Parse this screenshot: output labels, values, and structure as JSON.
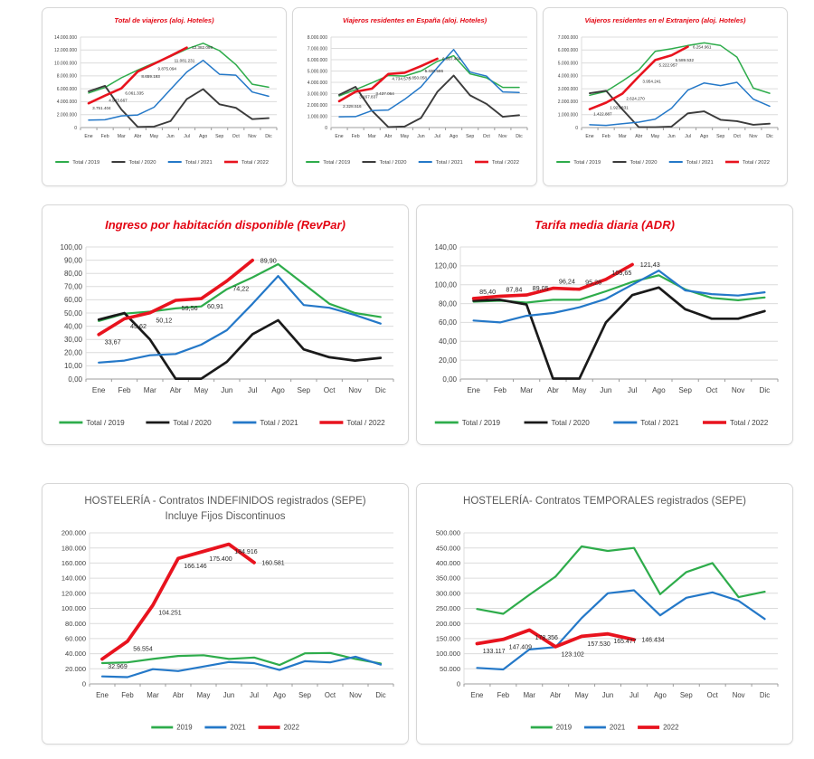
{
  "months": [
    "Ene",
    "Feb",
    "Mar",
    "Abr",
    "May",
    "Jun",
    "Jul",
    "Ago",
    "Sep",
    "Oct",
    "Nov",
    "Dic"
  ],
  "chart_data": [
    {
      "id": "total-viajeros",
      "type": "line",
      "size": "sm",
      "title": "Total de viajeros (aloj. Hoteles)",
      "title_color": "#e30613",
      "categories": [
        "Ene",
        "Feb",
        "Mar",
        "Abr",
        "May",
        "Jun",
        "Jul",
        "Ago",
        "Sep",
        "Oct",
        "Nov",
        "Dic"
      ],
      "ylim": [
        0,
        14000000
      ],
      "grid": true,
      "legend_position": "bottom",
      "label_pos": "below",
      "yticks": [
        [
          0,
          "0"
        ],
        [
          2000000,
          "2.000.000"
        ],
        [
          4000000,
          "4.000.000"
        ],
        [
          6000000,
          "6.000.000"
        ],
        [
          8000000,
          "8.000.000"
        ],
        [
          10000000,
          "10.000.000"
        ],
        [
          12000000,
          "12.000.000"
        ],
        [
          14000000,
          "14.000.000"
        ]
      ],
      "series": [
        {
          "name": "Total / 2019",
          "color": "#2eac4b",
          "values": [
            5350000,
            6200000,
            7700000,
            8900000,
            10000000,
            11000000,
            12150000,
            13050000,
            11900000,
            9750000,
            6700000,
            6250000
          ]
        },
        {
          "name": "Total / 2020",
          "color": "#3b3b3b",
          "values": [
            5600000,
            6450000,
            2800000,
            100000,
            150000,
            1000000,
            4400000,
            5950000,
            3600000,
            3050000,
            1300000,
            1450000
          ]
        },
        {
          "name": "Total / 2021",
          "color": "#2478c8",
          "values": [
            1150000,
            1200000,
            1800000,
            1950000,
            3150000,
            5900000,
            8600000,
            10400000,
            8250000,
            8100000,
            5500000,
            4850000
          ]
        },
        {
          "name": "Total / 2022",
          "color": "#e8131e",
          "values": [
            3751404,
            4943667,
            6061335,
            8659193,
            9875094,
            11081231,
            12382098
          ],
          "labels": [
            "3.751.404",
            "4.943.667",
            "6.061.335",
            "8.659.193",
            "9.875.094",
            "11.081.231",
            "12.382.098"
          ]
        }
      ]
    },
    {
      "id": "viajeros-espana",
      "type": "line",
      "size": "sm",
      "title": "Viajeros residentes en España (aloj. Hoteles)",
      "title_color": "#e30613",
      "categories": [
        "Ene",
        "Feb",
        "Mar",
        "Abr",
        "May",
        "Jun",
        "Jul",
        "Ago",
        "Sep",
        "Oct",
        "Nov",
        "Dic"
      ],
      "ylim": [
        0,
        8000000
      ],
      "grid": true,
      "legend_position": "bottom",
      "label_pos": "below",
      "yticks": [
        [
          0,
          "0"
        ],
        [
          1000000,
          "1.000.000"
        ],
        [
          2000000,
          "2.000.000"
        ],
        [
          3000000,
          "3.000.000"
        ],
        [
          4000000,
          "4.000.000"
        ],
        [
          5000000,
          "5.000.000"
        ],
        [
          6000000,
          "6.000.000"
        ],
        [
          7000000,
          "7.000.000"
        ],
        [
          8000000,
          "8.000.000"
        ]
      ],
      "series": [
        {
          "name": "Total / 2019",
          "color": "#2eac4b",
          "values": [
            2800000,
            3350000,
            3950000,
            4600000,
            4550000,
            5000000,
            5850000,
            6350000,
            4750000,
            4400000,
            3550000,
            3550000
          ]
        },
        {
          "name": "Total / 2020",
          "color": "#3b3b3b",
          "values": [
            2900000,
            3600000,
            1500000,
            50000,
            100000,
            850000,
            3150000,
            4600000,
            2850000,
            2100000,
            950000,
            1100000
          ]
        },
        {
          "name": "Total / 2021",
          "color": "#2478c8",
          "values": [
            950000,
            970000,
            1500000,
            1550000,
            2500000,
            3600000,
            5300000,
            6900000,
            4900000,
            4550000,
            3150000,
            3100000
          ]
        },
        {
          "name": "Total / 2022",
          "color": "#e8131e",
          "values": [
            2328516,
            3167837,
            3437064,
            4734573,
            4850058,
            5430586,
            6087404
          ],
          "labels": [
            "2.328.516",
            "3.167.837",
            "3.437.064",
            "4.734.573",
            "4.850.058",
            "5.430.586",
            "6.087.404"
          ]
        }
      ]
    },
    {
      "id": "viajeros-extranjero",
      "type": "line",
      "size": "sm",
      "title": "Viajeros residentes en el Extranjero (aloj. Hoteles)",
      "title_color": "#e30613",
      "categories": [
        "Ene",
        "Feb",
        "Mar",
        "Abr",
        "May",
        "Jun",
        "Jul",
        "Ago",
        "Sep",
        "Oct",
        "Nov",
        "Dic"
      ],
      "ylim": [
        0,
        7000000
      ],
      "grid": true,
      "legend_position": "bottom",
      "label_pos": "below",
      "yticks": [
        [
          0,
          "0"
        ],
        [
          1000000,
          "1.000.000"
        ],
        [
          2000000,
          "2.000.000"
        ],
        [
          3000000,
          "3.000.000"
        ],
        [
          4000000,
          "4.000.000"
        ],
        [
          5000000,
          "5.000.000"
        ],
        [
          6000000,
          "6.000.000"
        ],
        [
          7000000,
          "7.000.000"
        ]
      ],
      "series": [
        {
          "name": "Total / 2019",
          "color": "#2eac4b",
          "values": [
            2500000,
            2800000,
            3600000,
            4450000,
            5900000,
            6100000,
            6350000,
            6550000,
            6350000,
            5450000,
            3050000,
            2650000
          ]
        },
        {
          "name": "Total / 2020",
          "color": "#3b3b3b",
          "values": [
            2650000,
            2850000,
            1400000,
            30000,
            30000,
            80000,
            1100000,
            1250000,
            600000,
            500000,
            220000,
            300000
          ]
        },
        {
          "name": "Total / 2021",
          "color": "#2478c8",
          "values": [
            220000,
            170000,
            300000,
            420000,
            650000,
            1500000,
            2900000,
            3450000,
            3250000,
            3500000,
            2200000,
            1650000
          ]
        },
        {
          "name": "Total / 2022",
          "color": "#e8131e",
          "values": [
            1422887,
            1923831,
            2624270,
            3954241,
            5222957,
            5589532,
            6254961
          ],
          "labels": [
            "1.422.887",
            "1.923.831",
            "2.624.270",
            "3.954.241",
            "5.222.957",
            "5.589.532",
            "6.254.961"
          ]
        }
      ]
    },
    {
      "id": "revpar",
      "type": "line",
      "size": "md",
      "title": "Ingreso por habitación disponible (RevPar)",
      "title_color": "#e30613",
      "categories": [
        "Ene",
        "Feb",
        "Mar",
        "Abr",
        "May",
        "Jun",
        "Jul",
        "Ago",
        "Sep",
        "Oct",
        "Nov",
        "Dic"
      ],
      "ylim": [
        0,
        100
      ],
      "grid": true,
      "legend_position": "bottom",
      "label_pos": "below",
      "yticks": [
        [
          0,
          "0,00"
        ],
        [
          10,
          "10,00"
        ],
        [
          20,
          "20,00"
        ],
        [
          30,
          "30,00"
        ],
        [
          40,
          "40,00"
        ],
        [
          50,
          "50,00"
        ],
        [
          60,
          "60,00"
        ],
        [
          70,
          "70,00"
        ],
        [
          80,
          "80,00"
        ],
        [
          90,
          "90,00"
        ],
        [
          100,
          "100,00"
        ]
      ],
      "series": [
        {
          "name": "Total / 2019",
          "color": "#2eac4b",
          "values": [
            44,
            49.5,
            51,
            53.5,
            55,
            68,
            77,
            87,
            72,
            57,
            50,
            47
          ]
        },
        {
          "name": "Total / 2020",
          "color": "#1a1a1a",
          "values": [
            45,
            50,
            30,
            0.3,
            0.3,
            13,
            34,
            44.5,
            22.5,
            16.5,
            14,
            16
          ]
        },
        {
          "name": "Total / 2021",
          "color": "#2478c8",
          "values": [
            12.5,
            14,
            18,
            19,
            26,
            37,
            57,
            78,
            56,
            54,
            48.5,
            42
          ]
        },
        {
          "name": "Total / 2022",
          "color": "#e8131e",
          "values": [
            33.67,
            45.62,
            50.12,
            59.56,
            60.91,
            74.22,
            89.9
          ],
          "labels": [
            "33,67",
            "45,62",
            "50,12",
            "59,56",
            "60,91",
            "74,22",
            "89,90"
          ]
        }
      ]
    },
    {
      "id": "adr",
      "type": "line",
      "size": "md",
      "title": "Tarifa media diaria (ADR)",
      "title_color": "#e30613",
      "categories": [
        "Ene",
        "Feb",
        "Mar",
        "Abr",
        "May",
        "Jun",
        "Jul",
        "Ago",
        "Sep",
        "Oct",
        "Nov",
        "Dic"
      ],
      "ylim": [
        0,
        140
      ],
      "grid": true,
      "legend_position": "bottom",
      "label_pos": "above",
      "yticks": [
        [
          0,
          "0,00"
        ],
        [
          20,
          "20,00"
        ],
        [
          40,
          "40,00"
        ],
        [
          60,
          "60,00"
        ],
        [
          80,
          "80,00"
        ],
        [
          100,
          "100,00"
        ],
        [
          120,
          "120,00"
        ],
        [
          140,
          "140,00"
        ]
      ],
      "series": [
        {
          "name": "Total / 2019",
          "color": "#2eac4b",
          "values": [
            82,
            83,
            81,
            84,
            84,
            93,
            103,
            110,
            95,
            86,
            83.5,
            86.5
          ]
        },
        {
          "name": "Total / 2020",
          "color": "#1a1a1a",
          "values": [
            83,
            84,
            79,
            0.5,
            0.5,
            60,
            89,
            97,
            74,
            64,
            64,
            72
          ]
        },
        {
          "name": "Total / 2021",
          "color": "#2478c8",
          "values": [
            62,
            60,
            67,
            70,
            76,
            85,
            100,
            115,
            94,
            90,
            88.5,
            92
          ]
        },
        {
          "name": "Total / 2022",
          "color": "#e8131e",
          "values": [
            85.4,
            87.84,
            89.05,
            96.24,
            95.26,
            105.65,
            121.43
          ],
          "labels": [
            "85,40",
            "87,84",
            "89,05",
            "96,24",
            "95,26",
            "105,65",
            "121,43"
          ]
        }
      ]
    },
    {
      "id": "contratos-indefinidos",
      "type": "line",
      "size": "lg",
      "title": "HOSTELERÍA - Contratos INDEFINIDOS registrados (SEPE)",
      "subtitle": "Incluye Fijos Discontinuos",
      "title_color": "#595959",
      "categories": [
        "Ene",
        "Feb",
        "Mar",
        "Abr",
        "May",
        "Jun",
        "Jul",
        "Ago",
        "Sep",
        "Oct",
        "Nov",
        "Dic"
      ],
      "ylim": [
        0,
        200000
      ],
      "grid": true,
      "legend_position": "bottom",
      "label_pos": "below",
      "yticks": [
        [
          0,
          "0"
        ],
        [
          20000,
          "20.000"
        ],
        [
          40000,
          "40.000"
        ],
        [
          60000,
          "60.000"
        ],
        [
          80000,
          "80.000"
        ],
        [
          100000,
          "100.000"
        ],
        [
          120000,
          "120.000"
        ],
        [
          140000,
          "140.000"
        ],
        [
          160000,
          "160.000"
        ],
        [
          180000,
          "180.000"
        ],
        [
          200000,
          "200.000"
        ]
      ],
      "series": [
        {
          "name": "2019",
          "color": "#2eac4b",
          "values": [
            27500,
            28500,
            33000,
            37000,
            38000,
            33000,
            35000,
            25000,
            40500,
            41000,
            33000,
            27000
          ]
        },
        {
          "name": "2021",
          "color": "#2478c8",
          "values": [
            10000,
            9000,
            19500,
            17000,
            23000,
            29000,
            27500,
            18500,
            30000,
            28500,
            36000,
            25500
          ]
        },
        {
          "name": "2022",
          "color": "#e8131e",
          "values": [
            32969,
            56554,
            104251,
            166146,
            175400,
            184916,
            160581
          ],
          "labels": [
            "32.969",
            "56.554",
            "104.251",
            "166.146",
            "175.400",
            "184.916",
            "160.581"
          ]
        }
      ]
    },
    {
      "id": "contratos-temporales",
      "type": "line",
      "size": "lg",
      "title": "HOSTELERÍA- Contratos TEMPORALES registrados (SEPE)",
      "title_color": "#595959",
      "categories": [
        "Ene",
        "Feb",
        "Mar",
        "Abr",
        "May",
        "Jun",
        "Jul",
        "Ago",
        "Sep",
        "Oct",
        "Nov",
        "Dic"
      ],
      "ylim": [
        0,
        500000
      ],
      "grid": true,
      "legend_position": "bottom",
      "label_pos": "below",
      "yticks": [
        [
          0,
          "0"
        ],
        [
          50000,
          "50.000"
        ],
        [
          100000,
          "100.000"
        ],
        [
          150000,
          "150.000"
        ],
        [
          200000,
          "200.000"
        ],
        [
          250000,
          "250.000"
        ],
        [
          300000,
          "300.000"
        ],
        [
          350000,
          "350.000"
        ],
        [
          400000,
          "400.000"
        ],
        [
          450000,
          "450.000"
        ],
        [
          500000,
          "500.000"
        ]
      ],
      "series": [
        {
          "name": "2019",
          "color": "#2eac4b",
          "values": [
            248000,
            232000,
            295000,
            355000,
            455000,
            440000,
            450000,
            297000,
            370000,
            400000,
            287000,
            305000
          ]
        },
        {
          "name": "2021",
          "color": "#2478c8",
          "values": [
            53000,
            48000,
            114000,
            122000,
            218000,
            300000,
            310000,
            227000,
            285000,
            303000,
            275000,
            215000
          ]
        },
        {
          "name": "2022",
          "color": "#e8131e",
          "values": [
            133117,
            147409,
            178356,
            123102,
            157530,
            165477,
            146434
          ],
          "labels": [
            "133.117",
            "147.409",
            "178.356",
            "123.102",
            "157.530",
            "165.477",
            "146.434"
          ]
        }
      ]
    }
  ]
}
